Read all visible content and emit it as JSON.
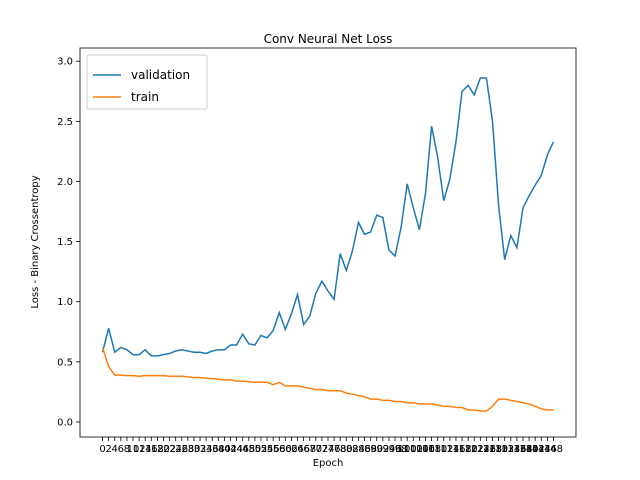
{
  "chart_data": {
    "type": "line",
    "title": "Conv Neural Net Loss",
    "xlabel": "Epoch",
    "ylabel": "Loss - Binary Crossentropy",
    "x": [
      0,
      2,
      4,
      6,
      8,
      10,
      12,
      14,
      16,
      18,
      20,
      22,
      24,
      26,
      28,
      30,
      32,
      34,
      36,
      38,
      40,
      42,
      44,
      46,
      48,
      50,
      52,
      54,
      56,
      58,
      60,
      62,
      64,
      66,
      68,
      70,
      72,
      74,
      76,
      78,
      80,
      82,
      84,
      86,
      88,
      90,
      92,
      94,
      96,
      98,
      100,
      102,
      104,
      106,
      108,
      110,
      112,
      114,
      116,
      118,
      120,
      122,
      124,
      126,
      128,
      130,
      132,
      134,
      136,
      138,
      140,
      142,
      144,
      146,
      148
    ],
    "series": [
      {
        "name": "validation",
        "color": "#1f77b4",
        "values": [
          0.58,
          0.78,
          0.58,
          0.62,
          0.6,
          0.56,
          0.56,
          0.6,
          0.55,
          0.55,
          0.56,
          0.57,
          0.59,
          0.6,
          0.59,
          0.58,
          0.58,
          0.57,
          0.59,
          0.6,
          0.6,
          0.64,
          0.64,
          0.73,
          0.65,
          0.64,
          0.72,
          0.7,
          0.76,
          0.91,
          0.77,
          0.9,
          1.06,
          0.81,
          0.88,
          1.07,
          1.17,
          1.09,
          1.02,
          1.4,
          1.26,
          1.42,
          1.66,
          1.56,
          1.58,
          1.72,
          1.7,
          1.43,
          1.38,
          1.62,
          1.98,
          1.78,
          1.6,
          1.9,
          2.46,
          2.2,
          1.84,
          2.02,
          2.33,
          2.75,
          2.8,
          2.72,
          2.86,
          2.86,
          2.5,
          1.8,
          1.35,
          1.55,
          1.45,
          1.78,
          1.88,
          1.97,
          2.05,
          2.22,
          2.33
        ]
      },
      {
        "name": "train",
        "color": "#ff7f0e",
        "values": [
          0.62,
          0.46,
          0.39,
          0.39,
          0.385,
          0.385,
          0.38,
          0.385,
          0.385,
          0.385,
          0.385,
          0.38,
          0.38,
          0.38,
          0.375,
          0.37,
          0.37,
          0.365,
          0.36,
          0.355,
          0.35,
          0.35,
          0.34,
          0.34,
          0.335,
          0.33,
          0.33,
          0.33,
          0.31,
          0.33,
          0.3,
          0.3,
          0.3,
          0.29,
          0.28,
          0.27,
          0.27,
          0.26,
          0.26,
          0.26,
          0.24,
          0.23,
          0.22,
          0.21,
          0.19,
          0.19,
          0.18,
          0.18,
          0.17,
          0.17,
          0.16,
          0.16,
          0.15,
          0.15,
          0.15,
          0.14,
          0.13,
          0.13,
          0.12,
          0.12,
          0.1,
          0.1,
          0.09,
          0.09,
          0.13,
          0.19,
          0.19,
          0.18,
          0.17,
          0.16,
          0.15,
          0.13,
          0.11,
          0.1,
          0.1
        ]
      }
    ],
    "xlim": [
      -7.4,
      155.4
    ],
    "xticks": [
      0,
      2,
      4,
      6,
      8,
      10,
      12,
      14,
      16,
      18,
      20,
      22,
      24,
      26,
      28,
      30,
      32,
      34,
      36,
      38,
      40,
      42,
      44,
      46,
      48,
      50,
      52,
      54,
      56,
      58,
      60,
      62,
      64,
      66,
      68,
      70,
      72,
      74,
      76,
      78,
      80,
      82,
      84,
      86,
      88,
      90,
      92,
      94,
      96,
      98,
      100,
      102,
      104,
      106,
      108,
      110,
      112,
      114,
      116,
      118,
      120,
      122,
      124,
      126,
      128,
      130,
      132,
      134,
      136,
      138,
      140,
      142,
      144,
      146,
      148
    ],
    "ylim": [
      -0.125,
      3.11
    ],
    "yticks": [
      {
        "value": 0,
        "label": "0.0"
      },
      0.5,
      {
        "value": 1,
        "label": "1.0"
      },
      1.5,
      {
        "value": 2,
        "label": "2.0"
      },
      2.5,
      {
        "value": 3,
        "label": "3.0"
      }
    ],
    "legend": "upper left"
  }
}
